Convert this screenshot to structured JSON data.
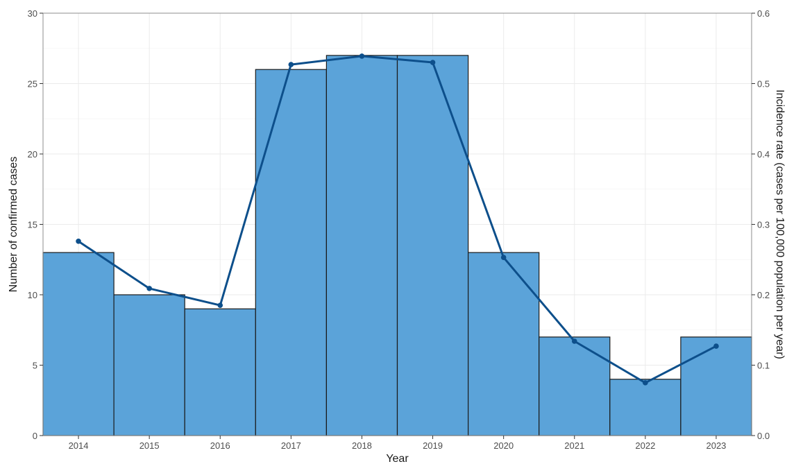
{
  "chart_data": {
    "type": "bar",
    "title": "",
    "xlabel": "Year",
    "ylabel": "Number of confirmed cases",
    "y2label": "Incidence rate (cases per 100,000 population per year)",
    "categories": [
      "2014",
      "2015",
      "2016",
      "2017",
      "2018",
      "2019",
      "2020",
      "2021",
      "2022",
      "2023"
    ],
    "ylim": [
      0,
      30
    ],
    "y2lim": [
      0,
      0.6
    ],
    "yticks": [
      "0",
      "5",
      "10",
      "15",
      "20",
      "25",
      "30"
    ],
    "y2ticks": [
      "0.0",
      "0.1",
      "0.2",
      "0.3",
      "0.4",
      "0.5",
      "0.6"
    ],
    "grid": true,
    "series": [
      {
        "type": "bar",
        "axis": "left",
        "values": [
          13,
          10,
          9,
          26,
          27,
          27,
          13,
          7,
          4,
          7
        ],
        "color": "#5ba3d9"
      },
      {
        "type": "line",
        "axis": "right",
        "values": [
          0.276,
          0.209,
          0.185,
          0.527,
          0.539,
          0.53,
          0.253,
          0.134,
          0.075,
          0.127
        ],
        "color": "#0d4f8b"
      }
    ]
  }
}
